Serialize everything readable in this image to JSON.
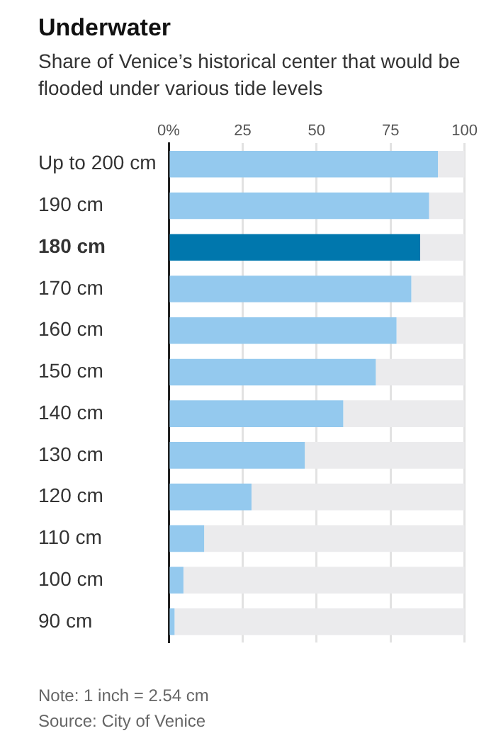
{
  "chart_data": {
    "type": "bar",
    "orientation": "horizontal",
    "stacked": true,
    "title": "Underwater",
    "subtitle": "Share of Venice’s historical center that would be flooded under various tide levels",
    "categories": [
      "Up to 200 cm",
      "190 cm",
      "180 cm",
      "170 cm",
      "160 cm",
      "150 cm",
      "140 cm",
      "130 cm",
      "120 cm",
      "110 cm",
      "100 cm",
      "90 cm"
    ],
    "series": [
      {
        "color": "#94c9ee",
        "colors": [
          "#94c9ee",
          "#94c9ee",
          "#0077ad",
          "#94c9ee",
          "#94c9ee",
          "#94c9ee",
          "#94c9ee",
          "#94c9ee",
          "#94c9ee",
          "#94c9ee",
          "#94c9ee",
          "#94c9ee"
        ],
        "values": [
          91,
          88,
          85,
          82,
          77,
          70,
          59,
          46,
          28,
          12,
          5,
          2
        ]
      },
      {
        "color": "#ebebed",
        "values": [
          9,
          12,
          15,
          18,
          23,
          30,
          41,
          54,
          72,
          88,
          95,
          98
        ]
      }
    ],
    "xlim": [
      0,
      100
    ],
    "xticks": [
      {
        "value": 0,
        "label": "0%"
      },
      25,
      50,
      75,
      100
    ],
    "grid": "x",
    "legend": false,
    "annotations": [
      "Note: 1 inch = 2.54 cm",
      "Source: City of Venice"
    ]
  }
}
